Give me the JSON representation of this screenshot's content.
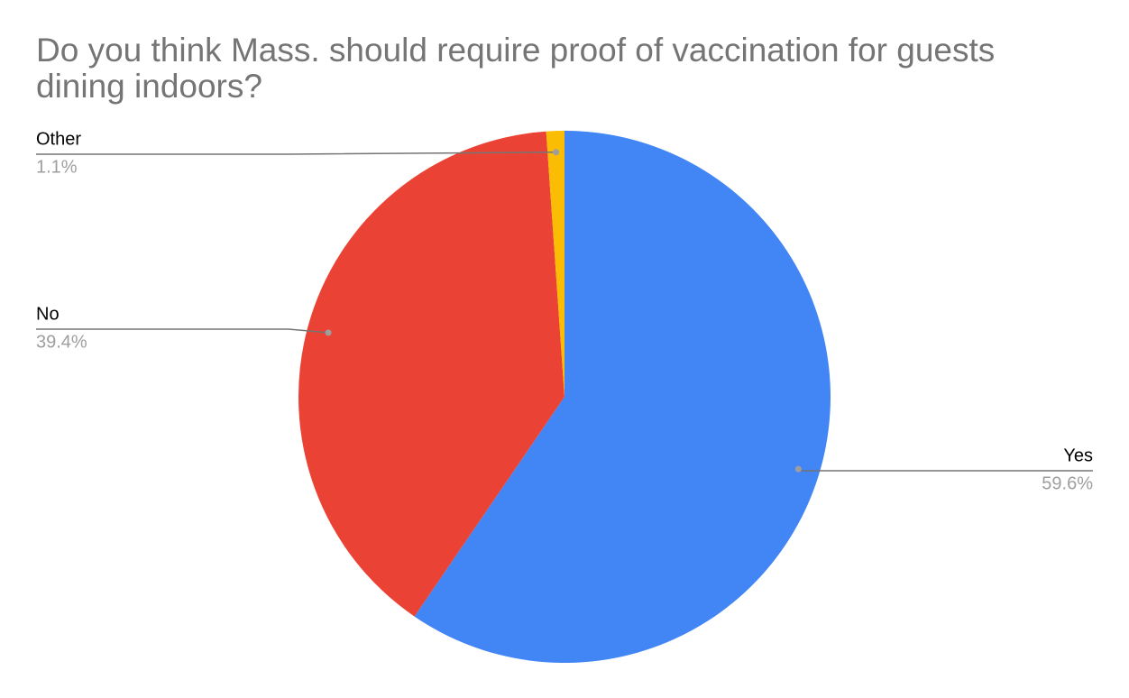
{
  "chart_data": {
    "type": "pie",
    "title": "Do you think Mass. should require proof of vaccination for guests dining indoors?",
    "categories": [
      "Yes",
      "No",
      "Other"
    ],
    "values": [
      59.6,
      39.4,
      1.1
    ],
    "value_labels": [
      "59.6%",
      "39.4%",
      "1.1%"
    ],
    "colors": [
      "#4285f4",
      "#ea4335",
      "#fbbc04"
    ]
  }
}
